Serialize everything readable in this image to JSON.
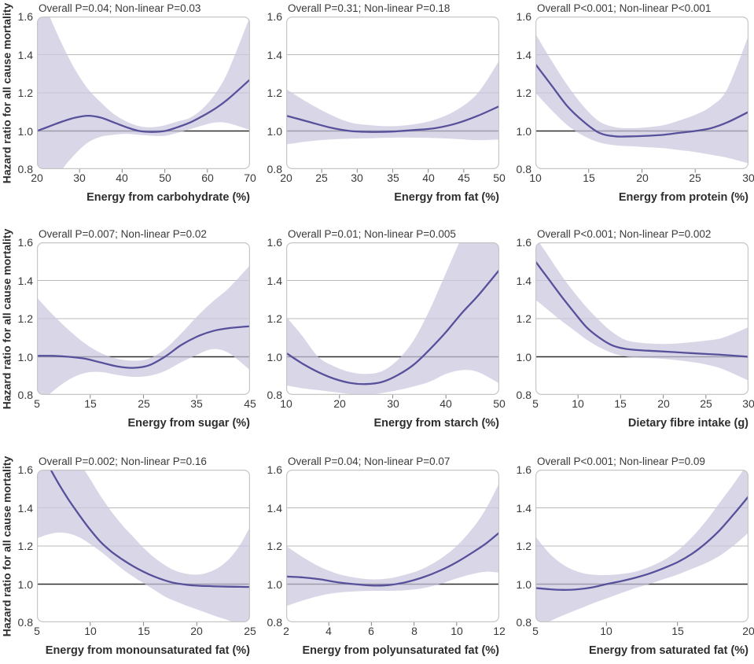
{
  "ylabel": "Hazard ratio for all cause mortality",
  "ylim": [
    0.8,
    1.6
  ],
  "yticks": [
    "1.6",
    "1.4",
    "1.2",
    "1.0",
    "0.8"
  ],
  "ytick_values": [
    1.6,
    1.4,
    1.2,
    1.0,
    0.8
  ],
  "gridline_values": [
    1.0,
    1.2,
    1.4
  ],
  "ref_line": 1.0,
  "colors": {
    "band": "#cbc8de",
    "band_opacity": 0.72,
    "line": "#57509b",
    "grid": "#b9b9b9",
    "ref": "#2e2e2e",
    "frame": "#c6c6c6",
    "tick": "#8f8f8f",
    "text": "#3a3a3a"
  },
  "chart_data": [
    {
      "type": "line",
      "title": "Overall P=0.04; Non-linear P=0.03",
      "xlabel": "Energy from carbohydrate (%)",
      "xlim": [
        20,
        70
      ],
      "xticks": [
        20,
        30,
        40,
        50,
        60,
        70
      ],
      "x": [
        20,
        23,
        26,
        29,
        32,
        35,
        38,
        41,
        44,
        47,
        50,
        53,
        56,
        59,
        62,
        65,
        70
      ],
      "hr": [
        1.0,
        1.025,
        1.05,
        1.07,
        1.08,
        1.07,
        1.045,
        1.02,
        1.0,
        0.995,
        1.0,
        1.02,
        1.045,
        1.08,
        1.12,
        1.17,
        1.27
      ],
      "upper": [
        1.78,
        1.6,
        1.45,
        1.32,
        1.22,
        1.15,
        1.09,
        1.05,
        1.025,
        1.02,
        1.03,
        1.05,
        1.07,
        1.12,
        1.2,
        1.32,
        1.6
      ],
      "lower": [
        0.5,
        0.68,
        0.8,
        0.88,
        0.94,
        0.97,
        0.98,
        0.985,
        0.98,
        0.975,
        0.975,
        0.99,
        1.01,
        1.03,
        1.045,
        1.04,
        1.005
      ]
    },
    {
      "type": "line",
      "title": "Overall P=0.31; Non-linear P=0.18",
      "xlabel": "Energy from fat (%)",
      "xlim": [
        20,
        50
      ],
      "xticks": [
        20,
        25,
        30,
        35,
        40,
        45,
        50
      ],
      "x": [
        20,
        23,
        26,
        29,
        32,
        35,
        38,
        41,
        44,
        47,
        50
      ],
      "hr": [
        1.08,
        1.05,
        1.02,
        1.0,
        0.995,
        0.997,
        1.005,
        1.015,
        1.04,
        1.08,
        1.13
      ],
      "upper": [
        1.22,
        1.15,
        1.09,
        1.045,
        1.03,
        1.025,
        1.035,
        1.06,
        1.11,
        1.2,
        1.37
      ],
      "lower": [
        0.93,
        0.945,
        0.955,
        0.96,
        0.962,
        0.965,
        0.965,
        0.963,
        0.958,
        0.952,
        0.955
      ]
    },
    {
      "type": "line",
      "title": "Overall P<0.001; Non-linear P<0.001",
      "xlabel": "Energy from protein (%)",
      "xlim": [
        10,
        30
      ],
      "xticks": [
        10,
        15,
        20,
        25,
        30
      ],
      "x": [
        10,
        11.5,
        13,
        14.5,
        16,
        17.5,
        19,
        20.5,
        22,
        23.5,
        25,
        26.5,
        28,
        30
      ],
      "hr": [
        1.35,
        1.24,
        1.13,
        1.05,
        0.99,
        0.972,
        0.972,
        0.975,
        0.98,
        0.99,
        1.0,
        1.015,
        1.045,
        1.1
      ],
      "upper": [
        1.51,
        1.37,
        1.24,
        1.13,
        1.05,
        1.02,
        1.015,
        1.02,
        1.03,
        1.055,
        1.085,
        1.13,
        1.22,
        1.5
      ],
      "lower": [
        1.2,
        1.11,
        1.03,
        0.975,
        0.94,
        0.925,
        0.92,
        0.915,
        0.91,
        0.9,
        0.89,
        0.875,
        0.86,
        0.83
      ]
    },
    {
      "type": "line",
      "title": "Overall P=0.007; Non-linear P=0.02",
      "xlabel": "Energy from sugar (%)",
      "xlim": [
        5,
        45
      ],
      "xticks": [
        5,
        15,
        25,
        35,
        45
      ],
      "x": [
        5,
        8,
        11,
        14,
        17,
        20,
        23,
        26,
        29,
        32,
        35,
        38,
        41,
        45
      ],
      "hr": [
        1.005,
        1.005,
        1.0,
        0.99,
        0.97,
        0.95,
        0.942,
        0.955,
        1.0,
        1.06,
        1.105,
        1.135,
        1.15,
        1.16
      ],
      "upper": [
        1.31,
        1.22,
        1.14,
        1.07,
        1.02,
        0.99,
        0.98,
        0.99,
        1.04,
        1.12,
        1.21,
        1.29,
        1.36,
        1.48
      ],
      "lower": [
        0.74,
        0.82,
        0.88,
        0.915,
        0.92,
        0.905,
        0.895,
        0.9,
        0.925,
        0.97,
        1.01,
        1.04,
        1.02,
        0.93
      ]
    },
    {
      "type": "line",
      "title": "Overall P=0.01; Non-linear P=0.005",
      "xlabel": "Energy from starch (%)",
      "xlim": [
        10,
        50
      ],
      "xticks": [
        10,
        20,
        30,
        40,
        50
      ],
      "x": [
        10,
        13,
        16,
        19,
        22,
        25,
        28,
        31,
        34,
        37,
        40,
        43,
        46,
        50
      ],
      "hr": [
        1.02,
        0.965,
        0.92,
        0.885,
        0.863,
        0.857,
        0.868,
        0.905,
        0.96,
        1.04,
        1.13,
        1.23,
        1.32,
        1.455
      ],
      "upper": [
        1.21,
        1.11,
        1.0,
        0.95,
        0.92,
        0.91,
        0.925,
        0.985,
        1.09,
        1.25,
        1.44,
        1.63,
        1.8,
        2.0
      ],
      "lower": [
        0.85,
        0.835,
        0.825,
        0.815,
        0.805,
        0.8,
        0.81,
        0.825,
        0.845,
        0.87,
        0.91,
        0.93,
        0.92,
        0.86
      ]
    },
    {
      "type": "line",
      "title": "Overall P<0.001; Non-linear P=0.002",
      "xlabel": "Dietary fibre intake (g)",
      "xlim": [
        5,
        30
      ],
      "xticks": [
        5,
        10,
        15,
        20,
        25,
        30
      ],
      "x": [
        5,
        6.5,
        8,
        9.5,
        11,
        12.5,
        14,
        15.5,
        17,
        19,
        21,
        23,
        25,
        27,
        30
      ],
      "hr": [
        1.5,
        1.41,
        1.32,
        1.235,
        1.155,
        1.1,
        1.06,
        1.042,
        1.035,
        1.03,
        1.025,
        1.02,
        1.015,
        1.01,
        1.0
      ],
      "upper": [
        1.63,
        1.53,
        1.43,
        1.34,
        1.26,
        1.19,
        1.13,
        1.09,
        1.075,
        1.068,
        1.068,
        1.075,
        1.085,
        1.1,
        1.155
      ],
      "lower": [
        1.3,
        1.245,
        1.19,
        1.14,
        1.09,
        1.05,
        1.02,
        1.002,
        0.995,
        0.992,
        0.985,
        0.975,
        0.96,
        0.935,
        0.875
      ]
    },
    {
      "type": "line",
      "title": "Overall P=0.002; Non-linear P=0.16",
      "xlabel": "Energy from monounsaturated fat (%)",
      "xlim": [
        5,
        25
      ],
      "xticks": [
        5,
        10,
        15,
        20,
        25
      ],
      "x": [
        5,
        6,
        7,
        8,
        9,
        10,
        11,
        12,
        13,
        14,
        15,
        16,
        17,
        18,
        19,
        20,
        21,
        22,
        23,
        24,
        25
      ],
      "hr": [
        1.74,
        1.63,
        1.53,
        1.44,
        1.36,
        1.285,
        1.22,
        1.17,
        1.13,
        1.095,
        1.065,
        1.04,
        1.02,
        1.005,
        0.997,
        0.992,
        0.99,
        0.988,
        0.987,
        0.986,
        0.985
      ],
      "upper": [
        2.1,
        1.97,
        1.85,
        1.74,
        1.64,
        1.55,
        1.46,
        1.38,
        1.31,
        1.25,
        1.19,
        1.14,
        1.1,
        1.07,
        1.055,
        1.05,
        1.06,
        1.085,
        1.13,
        1.2,
        1.3
      ],
      "lower": [
        1.24,
        1.26,
        1.27,
        1.265,
        1.245,
        1.21,
        1.17,
        1.125,
        1.08,
        1.04,
        1.005,
        0.97,
        0.935,
        0.91,
        0.888,
        0.868,
        0.848,
        0.828,
        0.81,
        0.79,
        0.77
      ]
    },
    {
      "type": "line",
      "title": "Overall P=0.04; Non-linear P=0.07",
      "xlabel": "Energy from polyunsaturated fat (%)",
      "xlim": [
        2,
        12
      ],
      "xticks": [
        2,
        4,
        6,
        8,
        10,
        12
      ],
      "x": [
        2,
        2.8,
        3.6,
        4.4,
        5.2,
        6,
        6.8,
        7.6,
        8.4,
        9.2,
        10,
        10.8,
        11.4,
        12
      ],
      "hr": [
        1.04,
        1.035,
        1.025,
        1.01,
        1.0,
        0.993,
        0.995,
        1.01,
        1.035,
        1.07,
        1.115,
        1.17,
        1.215,
        1.27
      ],
      "upper": [
        1.2,
        1.14,
        1.09,
        1.055,
        1.035,
        1.025,
        1.03,
        1.05,
        1.08,
        1.13,
        1.2,
        1.3,
        1.4,
        1.53
      ],
      "lower": [
        0.885,
        0.915,
        0.94,
        0.955,
        0.962,
        0.965,
        0.965,
        0.968,
        0.978,
        1.0,
        1.03,
        1.055,
        1.065,
        1.06
      ]
    },
    {
      "type": "line",
      "title": "Overall P<0.001; Non-linear P=0.09",
      "xlabel": "Energy from saturated fat (%)",
      "xlim": [
        5,
        20
      ],
      "xticks": [
        5,
        10,
        15,
        20
      ],
      "x": [
        5,
        6,
        7,
        8,
        9,
        10,
        11,
        12,
        13,
        14,
        15,
        16,
        17,
        18,
        19,
        20
      ],
      "hr": [
        0.98,
        0.973,
        0.97,
        0.973,
        0.983,
        1.0,
        1.015,
        1.033,
        1.055,
        1.083,
        1.115,
        1.158,
        1.215,
        1.285,
        1.37,
        1.46
      ],
      "upper": [
        1.25,
        1.16,
        1.1,
        1.065,
        1.05,
        1.048,
        1.053,
        1.065,
        1.09,
        1.125,
        1.175,
        1.245,
        1.33,
        1.43,
        1.53,
        1.64
      ],
      "lower": [
        0.77,
        0.805,
        0.838,
        0.868,
        0.898,
        0.925,
        0.952,
        0.978,
        1.0,
        1.025,
        1.05,
        1.08,
        1.11,
        1.15,
        1.205,
        1.27
      ]
    }
  ]
}
